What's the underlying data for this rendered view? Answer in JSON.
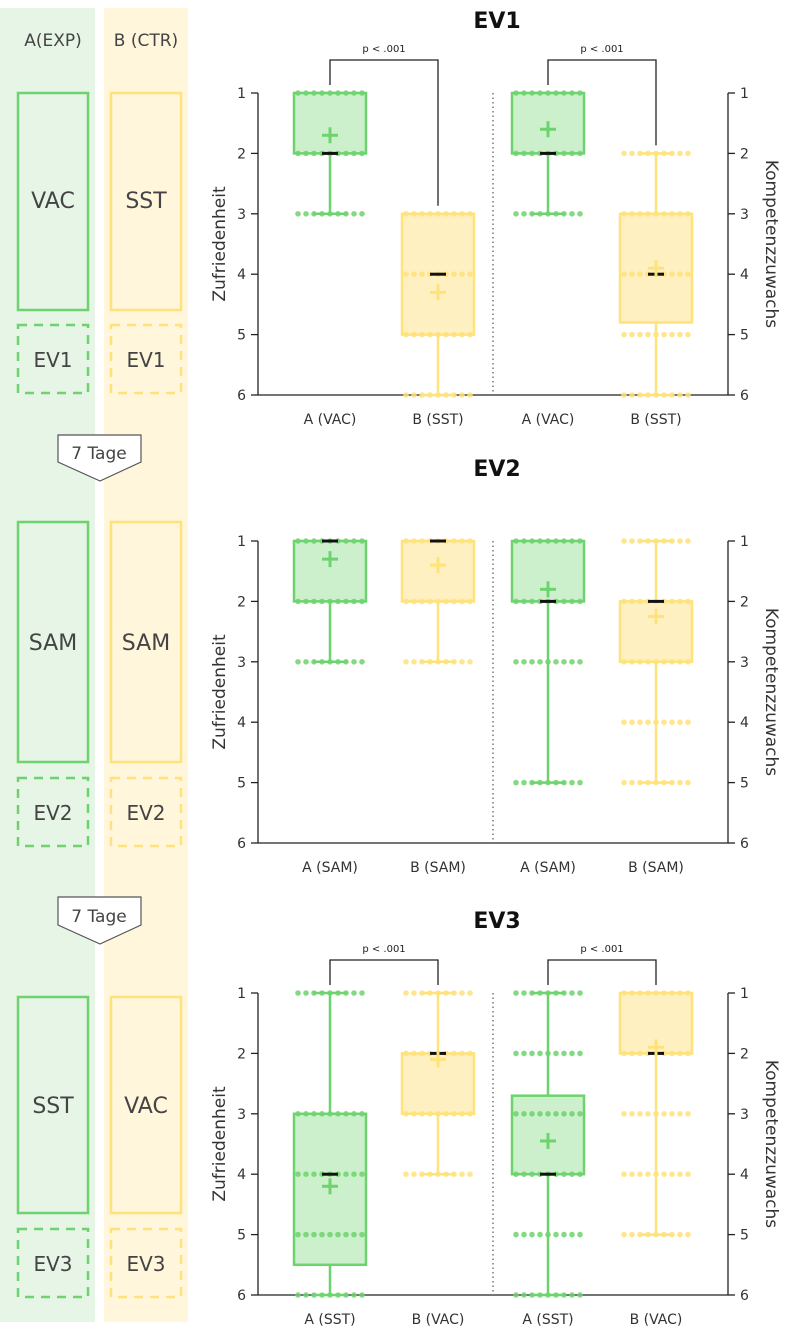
{
  "flow": {
    "group_a": "A(EXP)",
    "group_b": "B (CTR)",
    "interval_labels": [
      "7 Tage",
      "7 Tage"
    ],
    "phases": [
      {
        "a": "VAC",
        "b": "SST",
        "eval": "EV1"
      },
      {
        "a": "SAM",
        "b": "SAM",
        "eval": "EV2"
      },
      {
        "a": "SST",
        "b": "VAC",
        "eval": "EV3"
      }
    ]
  },
  "colors": {
    "green": "#6ED36E",
    "green_fill": "#CCF0CC",
    "green_panel": "#E6F5E6",
    "yellow": "#FFE27A",
    "yellow_fill": "#FFF0C2",
    "yellow_panel": "#FFF6DC",
    "axis": "#222222"
  },
  "chart_data": [
    {
      "type": "box",
      "title": "EV1",
      "ylabel_left": "Zufriedenheit",
      "ylabel_right": "Kompetenzzuwachs",
      "ylim": [
        1,
        6
      ],
      "y_inverted": true,
      "yticks": [
        "1",
        "2",
        "3",
        "4",
        "5",
        "6"
      ],
      "categories": [
        "A (VAC)",
        "B (SST)",
        "A (VAC)",
        "B (SST)"
      ],
      "category_colors": [
        "green",
        "yellow",
        "green",
        "yellow"
      ],
      "significance": [
        {
          "from": 0,
          "to": 1,
          "label": "p < .001"
        },
        {
          "from": 2,
          "to": 3,
          "label": "p < .001"
        }
      ],
      "boxes": [
        {
          "min": 1,
          "q1": 1,
          "median": 2,
          "q3": 2,
          "max": 3,
          "mean": 1.7,
          "points": [
            1,
            2,
            3
          ]
        },
        {
          "min": 3,
          "q1": 3,
          "median": 4,
          "q3": 5,
          "max": 6,
          "mean": 4.3,
          "points": [
            3,
            4,
            5,
            6
          ]
        },
        {
          "min": 1,
          "q1": 1,
          "median": 2,
          "q3": 2,
          "max": 3,
          "mean": 1.6,
          "points": [
            1,
            2,
            3
          ]
        },
        {
          "min": 2,
          "q1": 3,
          "median": 4,
          "q3": 4.8,
          "max": 6,
          "mean": 3.9,
          "points": [
            2,
            3,
            4,
            5,
            6
          ]
        }
      ]
    },
    {
      "type": "box",
      "title": "EV2",
      "ylabel_left": "Zufriedenheit",
      "ylabel_right": "Kompetenzzuwachs",
      "ylim": [
        1,
        6
      ],
      "y_inverted": true,
      "yticks": [
        "1",
        "2",
        "3",
        "4",
        "5",
        "6"
      ],
      "categories": [
        "A (SAM)",
        "B (SAM)",
        "A (SAM)",
        "B (SAM)"
      ],
      "category_colors": [
        "green",
        "yellow",
        "green",
        "yellow"
      ],
      "significance": [],
      "boxes": [
        {
          "min": 1,
          "q1": 1,
          "median": 1,
          "q3": 2,
          "max": 3,
          "mean": 1.3,
          "points": [
            1,
            2,
            3
          ]
        },
        {
          "min": 1,
          "q1": 1,
          "median": 1,
          "q3": 2,
          "max": 3,
          "mean": 1.4,
          "points": [
            1,
            2,
            3
          ]
        },
        {
          "min": 1,
          "q1": 1,
          "median": 2,
          "q3": 2,
          "max": 5,
          "mean": 1.8,
          "points": [
            1,
            2,
            3,
            5
          ]
        },
        {
          "min": 1,
          "q1": 2,
          "median": 2,
          "q3": 3,
          "max": 5,
          "mean": 2.25,
          "points": [
            1,
            2,
            3,
            4,
            5
          ]
        }
      ]
    },
    {
      "type": "box",
      "title": "EV3",
      "ylabel_left": "Zufriedenheit",
      "ylabel_right": "Kompetenzzuwachs",
      "ylim": [
        1,
        6
      ],
      "y_inverted": true,
      "yticks": [
        "1",
        "2",
        "3",
        "4",
        "5",
        "6"
      ],
      "categories": [
        "A (SST)",
        "B (VAC)",
        "A (SST)",
        "B (VAC)"
      ],
      "category_colors": [
        "green",
        "yellow",
        "green",
        "yellow"
      ],
      "significance": [
        {
          "from": 0,
          "to": 1,
          "label": "p < .001"
        },
        {
          "from": 2,
          "to": 3,
          "label": "p < .001"
        }
      ],
      "boxes": [
        {
          "min": 1,
          "q1": 3,
          "median": 4,
          "q3": 5.5,
          "max": 6,
          "mean": 4.2,
          "points": [
            1,
            3,
            4,
            5,
            6
          ]
        },
        {
          "min": 1,
          "q1": 2,
          "median": 2,
          "q3": 3,
          "max": 4,
          "mean": 2.1,
          "points": [
            1,
            2,
            3,
            4
          ]
        },
        {
          "min": 1,
          "q1": 2.7,
          "median": 4,
          "q3": 4,
          "max": 6,
          "mean": 3.45,
          "points": [
            1,
            2,
            3,
            4,
            5,
            6
          ]
        },
        {
          "min": 1,
          "q1": 1,
          "median": 2,
          "q3": 2,
          "max": 5,
          "mean": 1.9,
          "points": [
            1,
            2,
            3,
            4,
            5
          ]
        }
      ]
    }
  ]
}
